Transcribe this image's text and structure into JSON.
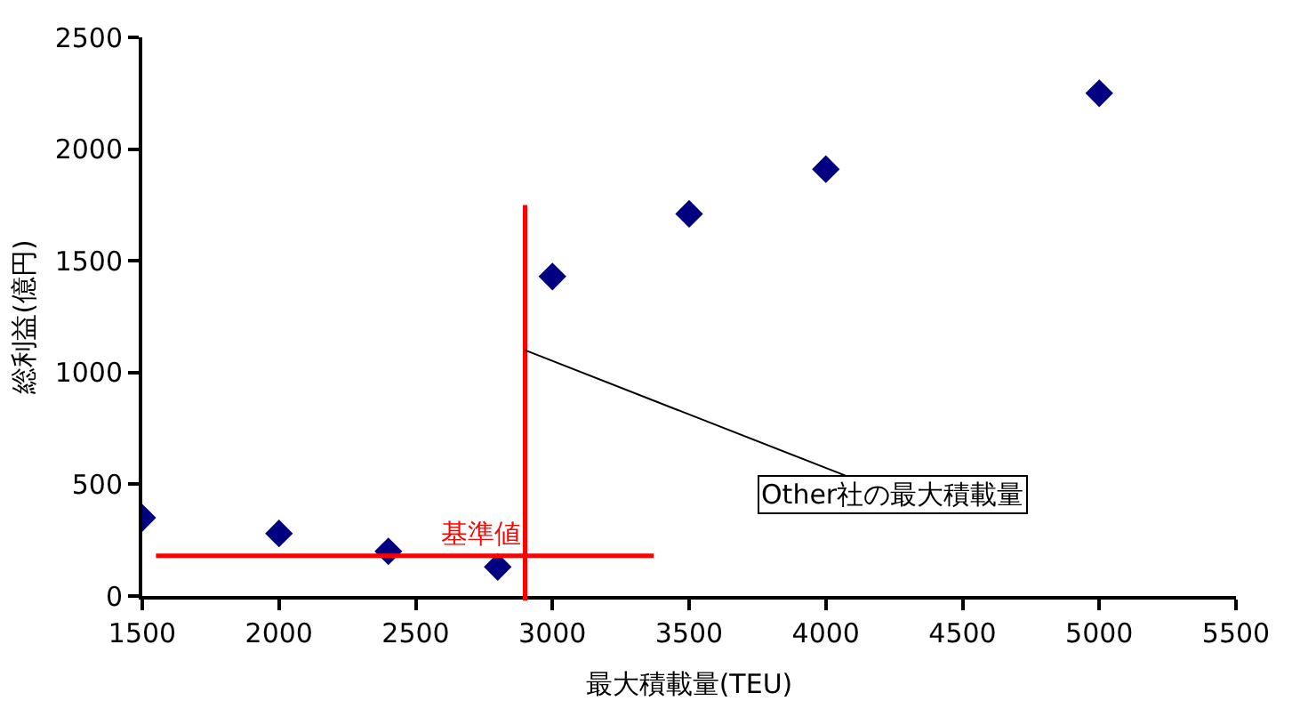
{
  "chart_data": {
    "type": "scatter",
    "xlabel": "最大積載量(TEU)",
    "ylabel": "総利益(億円)",
    "x": [
      1500,
      2000,
      2400,
      2800,
      3000,
      3500,
      4000,
      5000
    ],
    "series": [
      {
        "color": "#000080",
        "values": [
          350,
          280,
          200,
          130,
          1430,
          1710,
          1910,
          2250
        ]
      }
    ],
    "marker": "diamond",
    "xlim": [
      1500,
      5500
    ],
    "xticks": [
      1500,
      2000,
      2500,
      3000,
      3500,
      4000,
      4500,
      5000,
      5500
    ],
    "ylim": [
      0,
      2500
    ],
    "yticks": [
      0,
      500,
      1000,
      1500,
      2000,
      2500
    ],
    "ref_lines": [
      {
        "axis": "x",
        "value": 2900,
        "color": "#ff0000"
      },
      {
        "axis": "y",
        "value": 180,
        "label": "基準値",
        "color": "#ff0000"
      }
    ],
    "annotations": [
      {
        "text": "Other社の最大積載量",
        "x": 2900,
        "y": 1100
      }
    ]
  }
}
